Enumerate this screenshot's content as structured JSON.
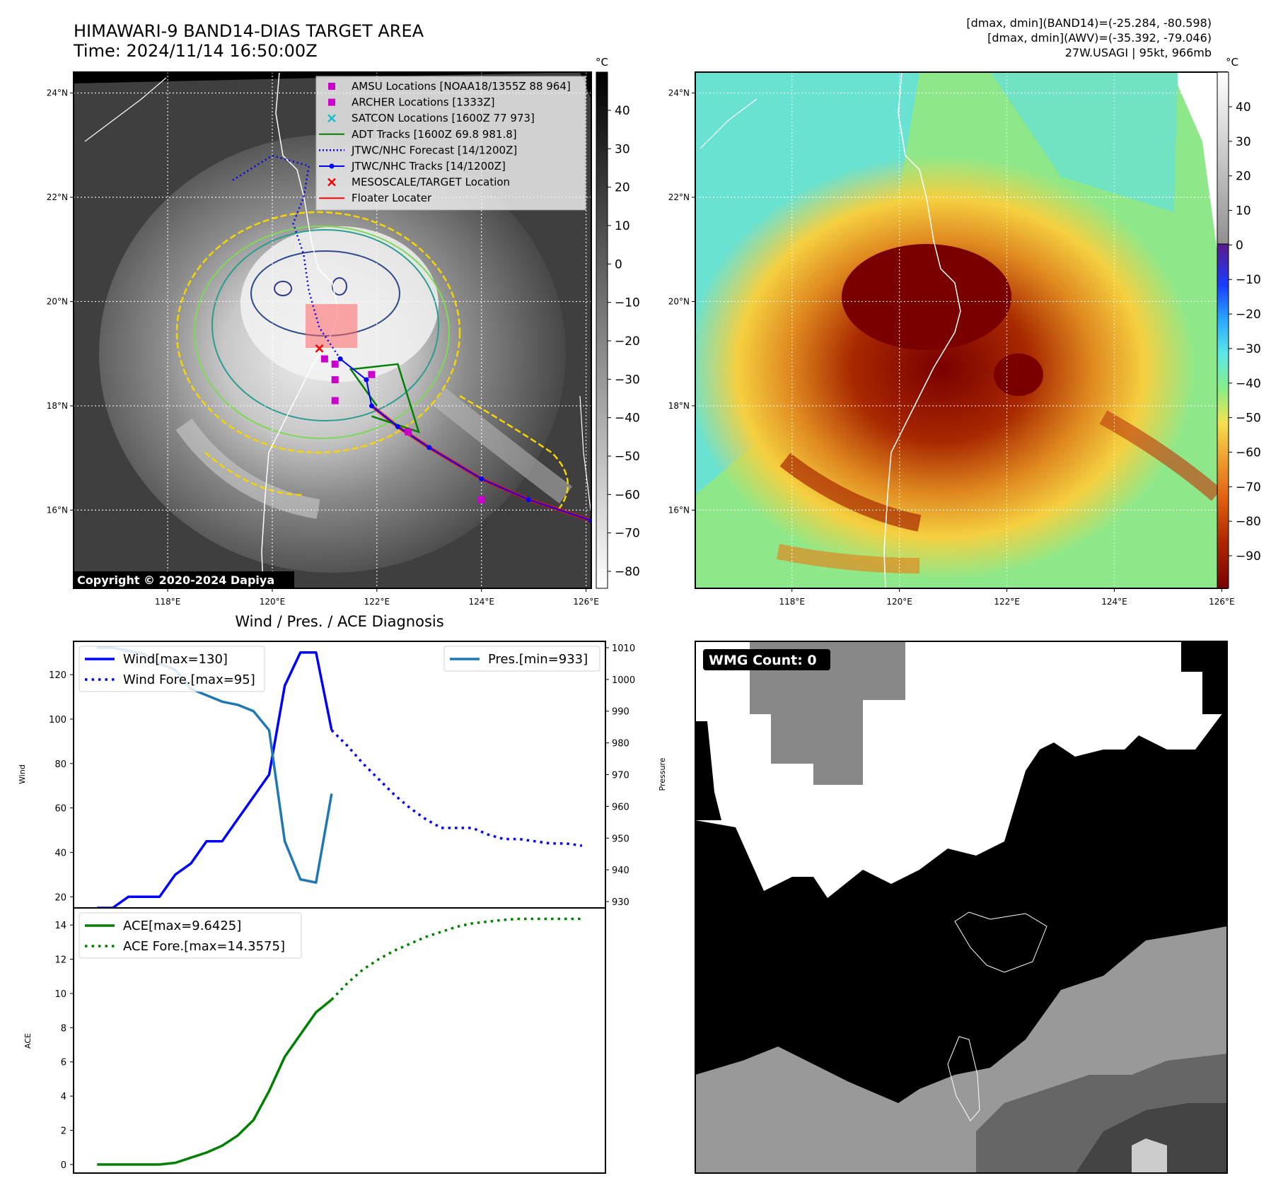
{
  "header": {
    "title": "HIMAWARI-9 BAND14-DIAS TARGET AREA",
    "time": "Time: 2024/11/14 16:50:00Z",
    "info1": "[dmax, dmin](BAND14)=(-25.284, -80.598)",
    "info2": "[dmax, dmin](AWV)=(-35.392, -79.046)",
    "info3": "27W.USAGI | 95kt, 966mb"
  },
  "copyright": "Copyright © 2020-2024 Dapiya",
  "wmg": {
    "label": "WMG Count: 0"
  },
  "diag_title": "Wind / Pres. / ACE Diagnosis",
  "colorbar_unit": "°C",
  "map_ticks": {
    "lat": [
      "24°N",
      "22°N",
      "20°N",
      "18°N",
      "16°N"
    ],
    "lon": [
      "118°E",
      "120°E",
      "122°E",
      "124°E",
      "126°E"
    ]
  },
  "colorbar1": {
    "ticks": [
      "40",
      "30",
      "20",
      "10",
      "0",
      "−10",
      "−20",
      "−30",
      "−40",
      "−50",
      "−60",
      "−70",
      "−80"
    ]
  },
  "colorbar2": {
    "ticks": [
      "40",
      "30",
      "20",
      "10",
      "0",
      "−10",
      "−20",
      "−30",
      "−40",
      "−50",
      "−60",
      "−70",
      "−80",
      "−90"
    ]
  },
  "legend_map": [
    {
      "label": "AMSU Locations [NOAA18/1355Z 88 964]",
      "color": "#cc00cc",
      "kind": "square"
    },
    {
      "label": "ARCHER Locations [1333Z]",
      "color": "#cc00cc",
      "kind": "square"
    },
    {
      "label": "SATCON Locations [1600Z 77 973]",
      "color": "#17becf",
      "kind": "x"
    },
    {
      "label": "ADT Tracks [1600Z 69.8 981.8]",
      "color": "#008000",
      "kind": "line"
    },
    {
      "label": "JTWC/NHC Forecast [14/1200Z]",
      "color": "#0000ff",
      "kind": "dotted"
    },
    {
      "label": "JTWC/NHC Tracks [14/1200Z]",
      "color": "#0000ff",
      "kind": "linedot"
    },
    {
      "label": "MESOSCALE/TARGET Location",
      "color": "#ff0000",
      "kind": "x"
    },
    {
      "label": "Floater Locater",
      "color": "#ff0000",
      "kind": "line"
    }
  ],
  "track": {
    "jtwc": [
      [
        126.1,
        15.8
      ],
      [
        124.9,
        16.2
      ],
      [
        124.0,
        16.6
      ],
      [
        123.0,
        17.2
      ],
      [
        122.4,
        17.6
      ],
      [
        121.9,
        18.0
      ],
      [
        121.8,
        18.5
      ],
      [
        121.3,
        18.9
      ]
    ],
    "forecast": [
      [
        121.3,
        18.9
      ],
      [
        120.9,
        19.5
      ],
      [
        120.7,
        20.2
      ],
      [
        120.6,
        20.9
      ],
      [
        120.4,
        21.5
      ],
      [
        120.6,
        22.0
      ],
      [
        120.7,
        22.6
      ],
      [
        120.0,
        22.8
      ],
      [
        119.2,
        22.3
      ]
    ],
    "amsu": [
      [
        121.2,
        18.1
      ]
    ],
    "archer": [
      [
        121.0,
        18.9
      ],
      [
        121.2,
        18.5
      ],
      [
        121.9,
        18.6
      ],
      [
        122.6,
        17.5
      ],
      [
        124.0,
        16.2
      ],
      [
        121.2,
        18.8
      ]
    ],
    "target": [
      [
        120.9,
        19.1
      ]
    ],
    "adt": [
      [
        122.0,
        18.0
      ],
      [
        121.5,
        18.7
      ],
      [
        122.4,
        18.8
      ],
      [
        122.8,
        17.5
      ],
      [
        121.9,
        17.8
      ]
    ]
  },
  "chart_data": [
    {
      "type": "line",
      "title": "Wind / Pres. / ACE Diagnosis",
      "ylabel": "Wind",
      "y2label": "Pressure",
      "ylim": [
        15,
        135
      ],
      "y2lim": [
        928,
        1012
      ],
      "series": [
        {
          "name": "Wind[max=130]",
          "axis": "left",
          "style": "solid",
          "color": "#0000ff",
          "x": [
            0,
            1,
            2,
            3,
            4,
            5,
            6,
            7,
            8,
            9,
            10,
            11,
            12,
            13,
            14,
            15,
            16,
            17,
            18
          ],
          "values": [
            15,
            15,
            20,
            20,
            20,
            30,
            35,
            45,
            45,
            55,
            65,
            75,
            115,
            130,
            130,
            95,
            null,
            null,
            null
          ]
        },
        {
          "name": "Wind Fore.[max=95]",
          "axis": "left",
          "style": "dotted",
          "color": "#0000ff",
          "x": [
            15,
            16,
            17,
            18,
            19,
            20,
            21,
            22,
            23,
            24,
            25,
            26,
            27,
            28,
            29,
            30,
            31
          ],
          "values": [
            95,
            88,
            80,
            73,
            66,
            60,
            55,
            51,
            51,
            51,
            48,
            46,
            46,
            45,
            44,
            44,
            43
          ]
        },
        {
          "name": "Pres.[min=933]",
          "axis": "right",
          "style": "solid",
          "color": "#1f77b4",
          "x": [
            0,
            1,
            2,
            3,
            4,
            5,
            6,
            7,
            8,
            9,
            10,
            11,
            12,
            13,
            14,
            15
          ],
          "values": [
            1010,
            1010,
            1009,
            1008,
            1005,
            1003,
            997,
            995,
            993,
            992,
            990,
            984,
            949,
            937,
            936,
            964
          ]
        }
      ]
    },
    {
      "type": "line",
      "ylabel": "ACE",
      "ylim": [
        -0.5,
        15
      ],
      "series": [
        {
          "name": "ACE[max=9.6425]",
          "style": "solid",
          "color": "#008000",
          "x": [
            0,
            1,
            2,
            3,
            4,
            5,
            6,
            7,
            8,
            9,
            10,
            11,
            12,
            13,
            14,
            15
          ],
          "values": [
            0,
            0,
            0,
            0,
            0,
            0.1,
            0.4,
            0.7,
            1.1,
            1.7,
            2.6,
            4.3,
            6.3,
            7.6,
            8.9,
            9.64
          ]
        },
        {
          "name": "ACE Fore.[max=14.3575]",
          "style": "dotted",
          "color": "#008000",
          "x": [
            15,
            16,
            17,
            18,
            19,
            20,
            21,
            22,
            23,
            24,
            25,
            26,
            27,
            28,
            29,
            30,
            31
          ],
          "values": [
            9.64,
            10.6,
            11.4,
            12.0,
            12.5,
            12.9,
            13.3,
            13.6,
            13.9,
            14.1,
            14.2,
            14.3,
            14.36,
            14.36,
            14.36,
            14.36,
            14.36
          ]
        }
      ]
    }
  ]
}
